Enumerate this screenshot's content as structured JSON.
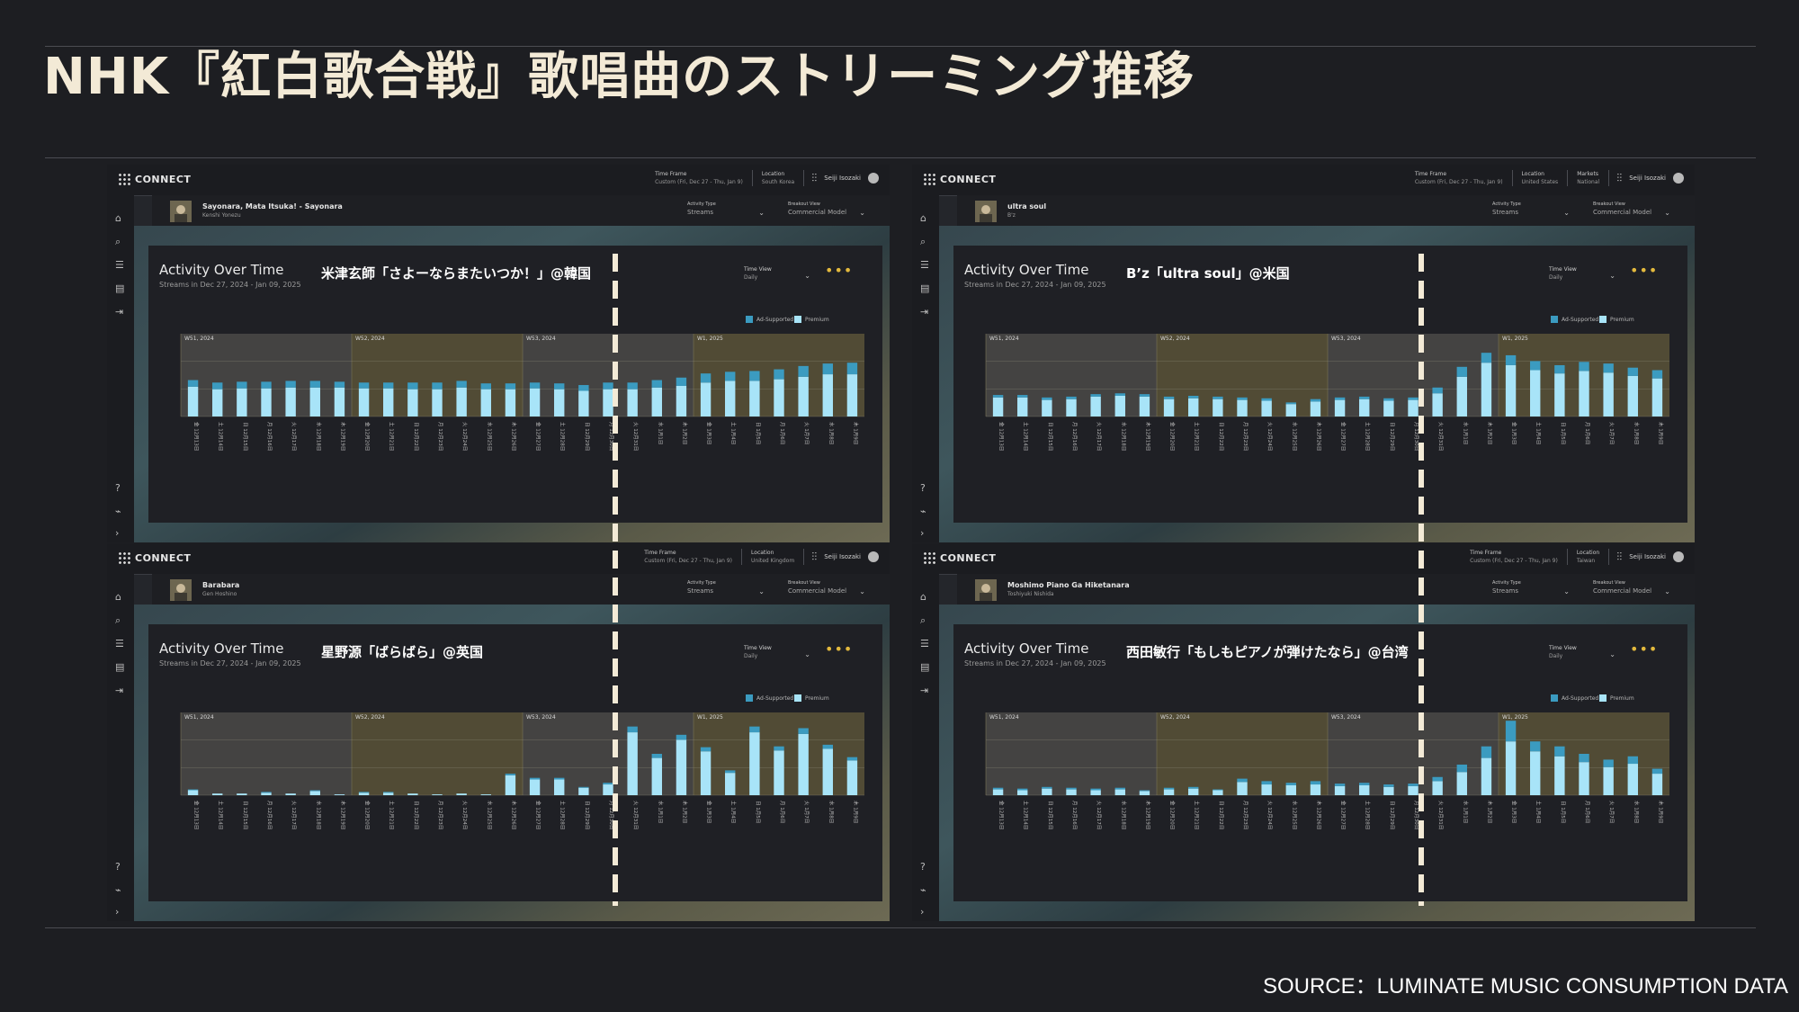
{
  "slide": {
    "title": "NHK『紅白歌合戦』歌唱曲のストリーミング推移",
    "source": "SOURCE：LUMINATE MUSIC CONSUMPTION DATA"
  },
  "common": {
    "logo": "CONNECT",
    "user": "Seiji Isozaki",
    "time_frame_label": "Time Frame",
    "time_frame_value": "Custom (Fri, Dec 27 - Thu, Jan 9)",
    "location_label": "Location",
    "markets_label": "Markets",
    "activity_type_label": "Activity Type",
    "activity_type_value": "Streams",
    "breakout_label": "Breakout View",
    "breakout_value": "Commercial Model",
    "card_title": "Activity Over Time",
    "card_subtitle": "Streams in Dec 27, 2024 - Jan 09, 2025",
    "time_view_label": "Time View",
    "time_view_value": "Daily",
    "legend_ad": "Ad-Supported",
    "legend_premium": "Premium",
    "icons": {
      "rail": [
        "home-icon",
        "search-icon",
        "list-icon",
        "report-icon",
        "export-icon",
        "help-icon",
        "chart-icon",
        "expand-icon"
      ],
      "settings": "sliders-icon",
      "more": "more-icon"
    }
  },
  "colors": {
    "ad_supported": "#3b9bc0",
    "premium": "#a8e4f8",
    "accent": "#e3b93d"
  },
  "panels": [
    {
      "track_title": "Sayonara, Mata Itsuka! - Sayonara",
      "artist": "Kenshi Yonezu",
      "annotation": "米津玄師「さよーならまたいつか！」@韓国",
      "location": "South Korea",
      "chart_data": {
        "type": "bar",
        "stacked": true,
        "week_labels": [
          "W51, 2024",
          "W52, 2024",
          "W53, 2024",
          "W1, 2025"
        ],
        "categories": [
          "金 12月13日",
          "土 12月14日",
          "日 12月15日",
          "月 12月16日",
          "火 12月17日",
          "水 12月18日",
          "木 12月19日",
          "金 12月20日",
          "土 12月21日",
          "日 12月22日",
          "月 12月23日",
          "火 12月24日",
          "水 12月25日",
          "木 12月26日",
          "金 12月27日",
          "土 12月28日",
          "日 12月29日",
          "月 12月30日",
          "火 12月31日",
          "水 1月1日",
          "木 1月2日",
          "金 1月3日",
          "土 1月4日",
          "日 1月5日",
          "月 1月6日",
          "火 1月7日",
          "水 1月8日",
          "木 1月9日"
        ],
        "ylim": [
          0,
          100
        ],
        "series": [
          {
            "name": "Premium",
            "values": [
              36,
              33,
              34,
              34,
              35,
              35,
              35,
              34,
              34,
              33,
              33,
              35,
              33,
              33,
              34,
              33,
              31,
              33,
              33,
              35,
              37,
              41,
              43,
              43,
              45,
              48,
              51,
              51
            ]
          },
          {
            "name": "Ad-Supported",
            "values": [
              8,
              8,
              8,
              8,
              8,
              8,
              7,
              7,
              7,
              8,
              8,
              8,
              7,
              7,
              7,
              7,
              7,
              8,
              8,
              9,
              10,
              11,
              11,
              12,
              12,
              13,
              13,
              14
            ]
          }
        ]
      }
    },
    {
      "track_title": "ultra soul",
      "artist": "B'z",
      "annotation": "B’z「ultra soul」@米国",
      "location": "United States",
      "markets": "National",
      "chart_data": {
        "type": "bar",
        "stacked": true,
        "week_labels": [
          "W51, 2024",
          "W52, 2024",
          "W53, 2024",
          "W1, 2025"
        ],
        "categories": [
          "金 12月13日",
          "土 12月14日",
          "日 12月15日",
          "月 12月16日",
          "火 12月17日",
          "水 12月18日",
          "木 12月19日",
          "金 12月20日",
          "土 12月21日",
          "日 12月22日",
          "月 12月23日",
          "火 12月24日",
          "水 12月25日",
          "木 12月26日",
          "金 12月27日",
          "土 12月28日",
          "日 12月29日",
          "月 12月30日",
          "火 12月31日",
          "水 1月1日",
          "木 1月2日",
          "金 1月3日",
          "土 1月4日",
          "日 1月5日",
          "月 1月6日",
          "火 1月7日",
          "水 1月8日",
          "木 1月9日"
        ],
        "ylim": [
          0,
          100
        ],
        "series": [
          {
            "name": "Premium",
            "values": [
              23,
              23,
              20,
              21,
              24,
              25,
              24,
              21,
              22,
              21,
              20,
              19,
              15,
              18,
              20,
              21,
              19,
              20,
              28,
              48,
              65,
              62,
              56,
              52,
              55,
              53,
              49,
              46
            ]
          },
          {
            "name": "Ad-Supported",
            "values": [
              3,
              3,
              3,
              3,
              3,
              3,
              3,
              3,
              3,
              3,
              3,
              3,
              2,
              3,
              3,
              3,
              3,
              3,
              7,
              12,
              12,
              12,
              11,
              10,
              11,
              11,
              10,
              10
            ]
          }
        ]
      }
    },
    {
      "track_title": "Barabara",
      "artist": "Gen Hoshino",
      "annotation": "星野源「ばらばら」@英国",
      "location": "United Kingdom",
      "chart_data": {
        "type": "bar",
        "stacked": true,
        "week_labels": [
          "W51, 2024",
          "W52, 2024",
          "W53, 2024",
          "W1, 2025"
        ],
        "categories": [
          "金 12月13日",
          "土 12月14日",
          "日 12月15日",
          "月 12月16日",
          "火 12月17日",
          "水 12月18日",
          "木 12月19日",
          "金 12月20日",
          "土 12月21日",
          "日 12月22日",
          "月 12月23日",
          "火 12月24日",
          "水 12月25日",
          "木 12月26日",
          "金 12月27日",
          "土 12月28日",
          "日 12月29日",
          "月 12月30日",
          "火 12月31日",
          "水 1月1日",
          "木 1月2日",
          "金 1月3日",
          "土 1月4日",
          "日 1月5日",
          "月 1月6日",
          "火 1月7日",
          "水 1月8日",
          "木 1月9日"
        ],
        "ylim": [
          0,
          100
        ],
        "series": [
          {
            "name": "Premium",
            "values": [
              6,
              2,
              2,
              3,
              2,
              5,
              1,
              3,
              3,
              2,
              1,
              2,
              1,
              24,
              19,
              19,
              9,
              13,
              76,
              45,
              67,
              53,
              27,
              76,
              54,
              74,
              56,
              42
            ]
          },
          {
            "name": "Ad-Supported",
            "values": [
              1,
              0,
              0,
              1,
              0,
              1,
              0,
              1,
              1,
              0,
              0,
              0,
              0,
              2,
              2,
              2,
              1,
              2,
              7,
              5,
              6,
              5,
              3,
              7,
              5,
              7,
              5,
              4
            ]
          }
        ]
      }
    },
    {
      "track_title": "Moshimo Piano Ga Hiketanara",
      "artist": "Toshiyuki Nishida",
      "annotation": "西田敏行「もしもピアノが弾けたなら」@台湾",
      "location": "Taiwan",
      "chart_data": {
        "type": "bar",
        "stacked": true,
        "week_labels": [
          "W51, 2024",
          "W52, 2024",
          "W53, 2024",
          "W1, 2025"
        ],
        "categories": [
          "金 12月13日",
          "土 12月14日",
          "日 12月15日",
          "月 12月16日",
          "火 12月17日",
          "水 12月18日",
          "木 12月19日",
          "金 12月20日",
          "土 12月21日",
          "日 12月22日",
          "月 12月23日",
          "火 12月24日",
          "水 12月25日",
          "木 12月26日",
          "金 12月27日",
          "土 12月28日",
          "日 12月29日",
          "月 12月30日",
          "火 12月31日",
          "水 1月1日",
          "木 1月2日",
          "金 1月3日",
          "土 1月4日",
          "日 1月5日",
          "月 1月6日",
          "火 1月7日",
          "水 1月8日",
          "木 1月9日"
        ],
        "ylim": [
          0,
          100
        ],
        "series": [
          {
            "name": "Premium",
            "values": [
              7,
              6,
              8,
              7,
              6,
              7,
              5,
              7,
              8,
              6,
              16,
              13,
              12,
              13,
              11,
              12,
              10,
              11,
              17,
              28,
              45,
              65,
              53,
              47,
              40,
              34,
              38,
              26
            ]
          },
          {
            "name": "Ad-Supported",
            "values": [
              2,
              2,
              2,
              2,
              2,
              2,
              1,
              2,
              2,
              1,
              4,
              4,
              3,
              4,
              3,
              3,
              3,
              3,
              5,
              9,
              14,
              25,
              12,
              12,
              10,
              9,
              9,
              6
            ]
          }
        ]
      }
    }
  ]
}
